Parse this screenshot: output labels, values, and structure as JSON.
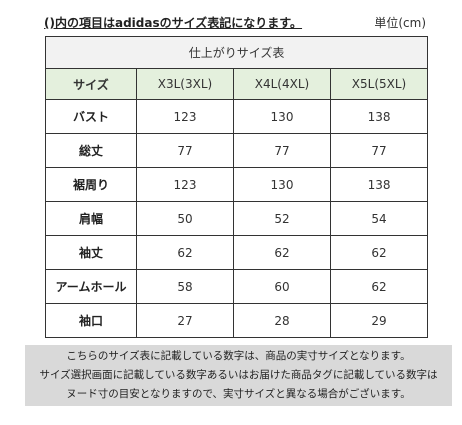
{
  "header": {
    "note": "()内の項目はadidasのサイズ表記になります。",
    "unit": "単位(cm)"
  },
  "table": {
    "caption": "仕上がりサイズ表",
    "size_label": "サイズ",
    "columns": [
      "X3L(3XL)",
      "X4L(4XL)",
      "X5L(5XL)"
    ],
    "rows": [
      {
        "label": "バスト",
        "values": [
          "123",
          "130",
          "138"
        ]
      },
      {
        "label": "総丈",
        "values": [
          "77",
          "77",
          "77"
        ]
      },
      {
        "label": "裾周り",
        "values": [
          "123",
          "130",
          "138"
        ]
      },
      {
        "label": "肩幅",
        "values": [
          "50",
          "52",
          "54"
        ]
      },
      {
        "label": "袖丈",
        "values": [
          "62",
          "62",
          "62"
        ]
      },
      {
        "label": "アームホール",
        "values": [
          "58",
          "60",
          "62"
        ]
      },
      {
        "label": "袖口",
        "values": [
          "27",
          "28",
          "29"
        ]
      }
    ]
  },
  "footer": {
    "lines": [
      "こちらのサイズ表に記載している数字は、商品の実寸サイズとなります。",
      "サイズ選択画面に記載している数字あるいはお届けた商品タグに記載している数字は",
      "ヌード寸の目安となりますので、実寸サイズと異なる場合がございます。"
    ]
  }
}
